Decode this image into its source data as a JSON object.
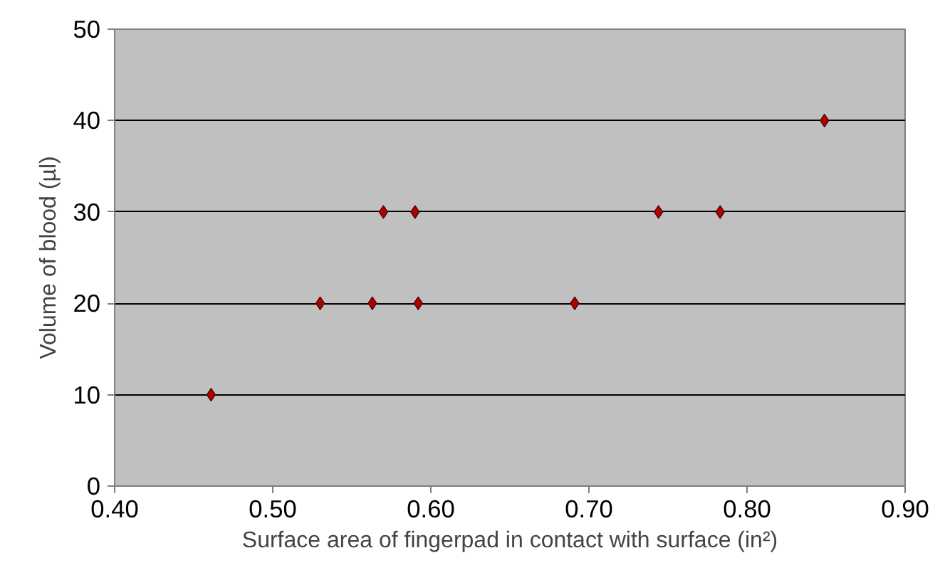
{
  "chart_data": {
    "type": "scatter",
    "xlabel": "Surface area of fingerpad in contact with surface (in²)",
    "ylabel": "Volume of blood (µl)",
    "x": [
      0.461,
      0.53,
      0.563,
      0.592,
      0.57,
      0.59,
      0.691,
      0.744,
      0.783,
      0.849
    ],
    "series": [
      {
        "color": "#b00000",
        "values": [
          10,
          20,
          20,
          20,
          30,
          30,
          20,
          30,
          30,
          40
        ]
      }
    ],
    "xlim": [
      0.4,
      0.9
    ],
    "xticks": [
      {
        "value": 0.4,
        "label": "0.40"
      },
      {
        "value": 0.5,
        "label": "0.50"
      },
      {
        "value": 0.6,
        "label": "0.60"
      },
      {
        "value": 0.7,
        "label": "0.70"
      },
      {
        "value": 0.8,
        "label": "0.80"
      },
      {
        "value": 0.9,
        "label": "0.90"
      }
    ],
    "ylim": [
      0,
      50
    ],
    "yticks": [
      0,
      10,
      20,
      30,
      40,
      50
    ],
    "grid": "y",
    "marker": "diamond"
  }
}
